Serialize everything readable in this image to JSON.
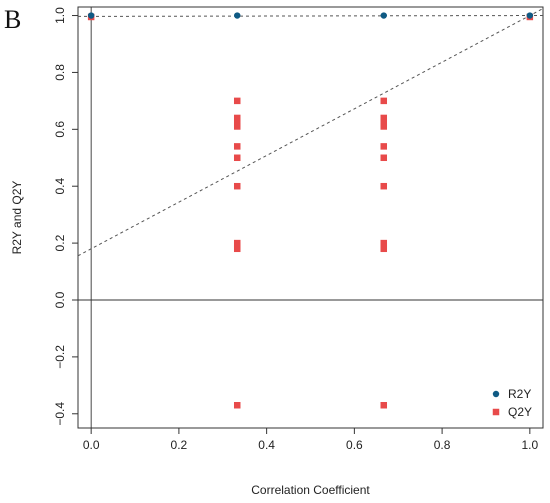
{
  "panel_label": "B",
  "colors": {
    "r2y": "#0f5a84",
    "q2y": "#e84a4a",
    "axis": "#333333",
    "dashed": "#555555"
  },
  "chart_data": {
    "type": "scatter",
    "xlabel": "Correlation Coefficient",
    "ylabel": "R2Y and Q2Y",
    "xlim": [
      -0.03,
      1.03
    ],
    "ylim": [
      -0.45,
      1.03
    ],
    "xticks": [
      0.0,
      0.2,
      0.4,
      0.6,
      0.8,
      1.0
    ],
    "xtick_labels": [
      "0.0",
      "0.2",
      "0.4",
      "0.6",
      "0.8",
      "1.0"
    ],
    "yticks": [
      -0.4,
      -0.2,
      0.0,
      0.2,
      0.4,
      0.6,
      0.8,
      1.0
    ],
    "ytick_labels": [
      "−0.4",
      "−0.2",
      "0.0",
      "0.2",
      "0.4",
      "0.6",
      "0.8",
      "1.0"
    ],
    "reference_lines": [
      {
        "orientation": "vertical",
        "x": 0.0
      },
      {
        "orientation": "horizontal",
        "y": 0.0
      }
    ],
    "regression_lines": [
      {
        "series": "R2Y",
        "intercept": 0.997,
        "slope": 0.003
      },
      {
        "series": "Q2Y",
        "intercept": 0.18,
        "slope": 0.82
      }
    ],
    "legend_position": "bottom-right",
    "series": [
      {
        "name": "R2Y",
        "marker": "circle",
        "color": "#0f5a84",
        "points": [
          {
            "x": 0.0,
            "y": 1.0
          },
          {
            "x": 0.333,
            "y": 1.0
          },
          {
            "x": 0.667,
            "y": 1.0
          },
          {
            "x": 1.0,
            "y": 1.0
          }
        ]
      },
      {
        "name": "Q2Y",
        "marker": "square",
        "color": "#e84a4a",
        "points": [
          {
            "x": 0.0,
            "y": 0.995
          },
          {
            "x": 0.333,
            "y": 0.7
          },
          {
            "x": 0.333,
            "y": 0.64
          },
          {
            "x": 0.333,
            "y": 0.62
          },
          {
            "x": 0.333,
            "y": 0.61
          },
          {
            "x": 0.333,
            "y": 0.54
          },
          {
            "x": 0.333,
            "y": 0.5
          },
          {
            "x": 0.333,
            "y": 0.4
          },
          {
            "x": 0.333,
            "y": 0.2
          },
          {
            "x": 0.333,
            "y": 0.19
          },
          {
            "x": 0.333,
            "y": 0.18
          },
          {
            "x": 0.333,
            "y": -0.37
          },
          {
            "x": 0.667,
            "y": 0.7
          },
          {
            "x": 0.667,
            "y": 0.64
          },
          {
            "x": 0.667,
            "y": 0.62
          },
          {
            "x": 0.667,
            "y": 0.61
          },
          {
            "x": 0.667,
            "y": 0.54
          },
          {
            "x": 0.667,
            "y": 0.5
          },
          {
            "x": 0.667,
            "y": 0.4
          },
          {
            "x": 0.667,
            "y": 0.2
          },
          {
            "x": 0.667,
            "y": 0.19
          },
          {
            "x": 0.667,
            "y": 0.18
          },
          {
            "x": 0.667,
            "y": -0.37
          },
          {
            "x": 1.0,
            "y": 0.995
          }
        ]
      }
    ]
  }
}
